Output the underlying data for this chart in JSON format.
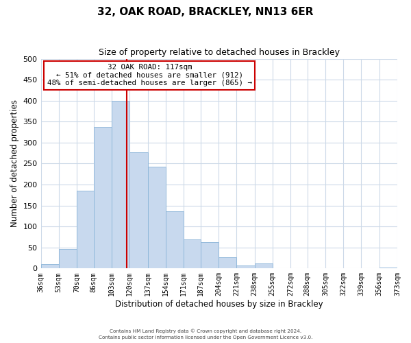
{
  "title": "32, OAK ROAD, BRACKLEY, NN13 6ER",
  "subtitle": "Size of property relative to detached houses in Brackley",
  "xlabel": "Distribution of detached houses by size in Brackley",
  "ylabel": "Number of detached properties",
  "bar_color": "#c8d9ee",
  "bar_edge_color": "#8ab4d8",
  "background_color": "#ffffff",
  "grid_color": "#ccd9e8",
  "bin_labels": [
    "36sqm",
    "53sqm",
    "70sqm",
    "86sqm",
    "103sqm",
    "120sqm",
    "137sqm",
    "154sqm",
    "171sqm",
    "187sqm",
    "204sqm",
    "221sqm",
    "238sqm",
    "255sqm",
    "272sqm",
    "288sqm",
    "305sqm",
    "322sqm",
    "339sqm",
    "356sqm",
    "373sqm"
  ],
  "bin_edges": [
    36,
    53,
    70,
    86,
    103,
    120,
    137,
    154,
    171,
    187,
    204,
    221,
    238,
    255,
    272,
    288,
    305,
    322,
    339,
    356,
    373
  ],
  "bar_heights": [
    10,
    47,
    185,
    338,
    400,
    277,
    242,
    137,
    70,
    62,
    26,
    7,
    12,
    0,
    0,
    0,
    0,
    0,
    0,
    2
  ],
  "ylim": [
    0,
    500
  ],
  "yticks": [
    0,
    50,
    100,
    150,
    200,
    250,
    300,
    350,
    400,
    450,
    500
  ],
  "property_size": 117,
  "property_line_color": "#cc0000",
  "annotation_title": "32 OAK ROAD: 117sqm",
  "annotation_line1": "← 51% of detached houses are smaller (912)",
  "annotation_line2": "48% of semi-detached houses are larger (865) →",
  "annotation_box_color": "#ffffff",
  "annotation_box_edge": "#cc0000",
  "footer_line1": "Contains HM Land Registry data © Crown copyright and database right 2024.",
  "footer_line2": "Contains public sector information licensed under the Open Government Licence v3.0."
}
